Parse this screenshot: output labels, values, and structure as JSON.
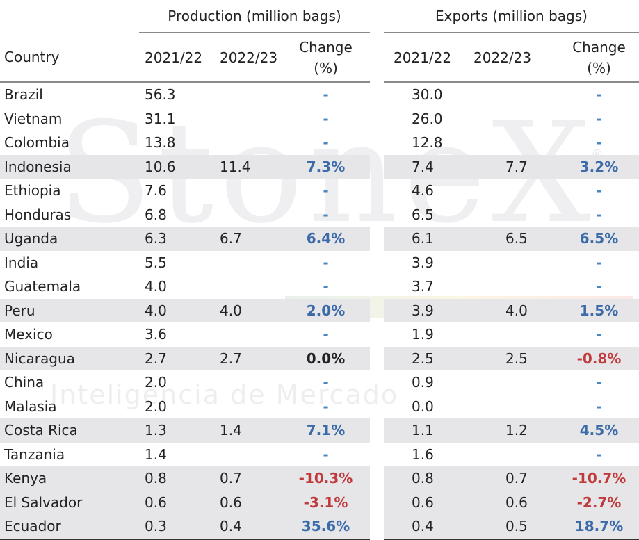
{
  "watermark": {
    "brand": "StoneX",
    "registered": "®",
    "line1": "STONEX BRASIL",
    "line2": "Inteligência de Mercado"
  },
  "header": {
    "production_group": "Production (million bags)",
    "exports_group": "Exports (million bags)",
    "country": "Country",
    "year1": "2021/22",
    "year2": "2022/23",
    "change_line1": "Change",
    "change_line2": "(%)"
  },
  "colors": {
    "positive": "#3b6aa8",
    "negative": "#c0393b",
    "shade": "#e6e6e9"
  },
  "rows": [
    {
      "country": "Brazil",
      "p1": "56.3",
      "p2": "",
      "pc": "-",
      "e1": "30.0",
      "e2": "",
      "ec": "-",
      "shade": false
    },
    {
      "country": "Vietnam",
      "p1": "31.1",
      "p2": "",
      "pc": "-",
      "e1": "26.0",
      "e2": "",
      "ec": "-",
      "shade": false
    },
    {
      "country": "Colombia",
      "p1": "13.8",
      "p2": "",
      "pc": "-",
      "e1": "12.8",
      "e2": "",
      "ec": "-",
      "shade": false
    },
    {
      "country": "Indonesia",
      "p1": "10.6",
      "p2": "11.4",
      "pc": "7.3%",
      "e1": "7.4",
      "e2": "7.7",
      "ec": "3.2%",
      "shade": true
    },
    {
      "country": "Ethiopia",
      "p1": "7.6",
      "p2": "",
      "pc": "-",
      "e1": "4.6",
      "e2": "",
      "ec": "-",
      "shade": false
    },
    {
      "country": "Honduras",
      "p1": "6.8",
      "p2": "",
      "pc": "-",
      "e1": "6.5",
      "e2": "",
      "ec": "-",
      "shade": false
    },
    {
      "country": "Uganda",
      "p1": "6.3",
      "p2": "6.7",
      "pc": "6.4%",
      "e1": "6.1",
      "e2": "6.5",
      "ec": "6.5%",
      "shade": true
    },
    {
      "country": "India",
      "p1": "5.5",
      "p2": "",
      "pc": "-",
      "e1": "3.9",
      "e2": "",
      "ec": "-",
      "shade": false
    },
    {
      "country": "Guatemala",
      "p1": "4.0",
      "p2": "",
      "pc": "-",
      "e1": "3.7",
      "e2": "",
      "ec": "-",
      "shade": false
    },
    {
      "country": "Peru",
      "p1": "4.0",
      "p2": "4.0",
      "pc": "2.0%",
      "e1": "3.9",
      "e2": "4.0",
      "ec": "1.5%",
      "shade": true
    },
    {
      "country": "Mexico",
      "p1": "3.6",
      "p2": "",
      "pc": "-",
      "e1": "1.9",
      "e2": "",
      "ec": "-",
      "shade": false
    },
    {
      "country": "Nicaragua",
      "p1": "2.7",
      "p2": "2.7",
      "pc": "0.0%",
      "e1": "2.5",
      "e2": "2.5",
      "ec": "-0.8%",
      "shade": true
    },
    {
      "country": "China",
      "p1": "2.0",
      "p2": "",
      "pc": "-",
      "e1": "0.9",
      "e2": "",
      "ec": "-",
      "shade": false
    },
    {
      "country": "Malasia",
      "p1": "2.0",
      "p2": "",
      "pc": "-",
      "e1": "0.0",
      "e2": "",
      "ec": "-",
      "shade": false
    },
    {
      "country": "Costa Rica",
      "p1": "1.3",
      "p2": "1.4",
      "pc": "7.1%",
      "e1": "1.1",
      "e2": "1.2",
      "ec": "4.5%",
      "shade": true
    },
    {
      "country": "Tanzania",
      "p1": "1.4",
      "p2": "",
      "pc": "-",
      "e1": "1.6",
      "e2": "",
      "ec": "-",
      "shade": false
    },
    {
      "country": "Kenya",
      "p1": "0.8",
      "p2": "0.7",
      "pc": "-10.3%",
      "e1": "0.8",
      "e2": "0.7",
      "ec": "-10.7%",
      "shade": true
    },
    {
      "country": "El Salvador",
      "p1": "0.6",
      "p2": "0.6",
      "pc": "-3.1%",
      "e1": "0.6",
      "e2": "0.6",
      "ec": "-2.7%",
      "shade": true
    },
    {
      "country": "Ecuador",
      "p1": "0.3",
      "p2": "0.4",
      "pc": "35.6%",
      "e1": "0.4",
      "e2": "0.5",
      "ec": "18.7%",
      "shade": true
    }
  ]
}
